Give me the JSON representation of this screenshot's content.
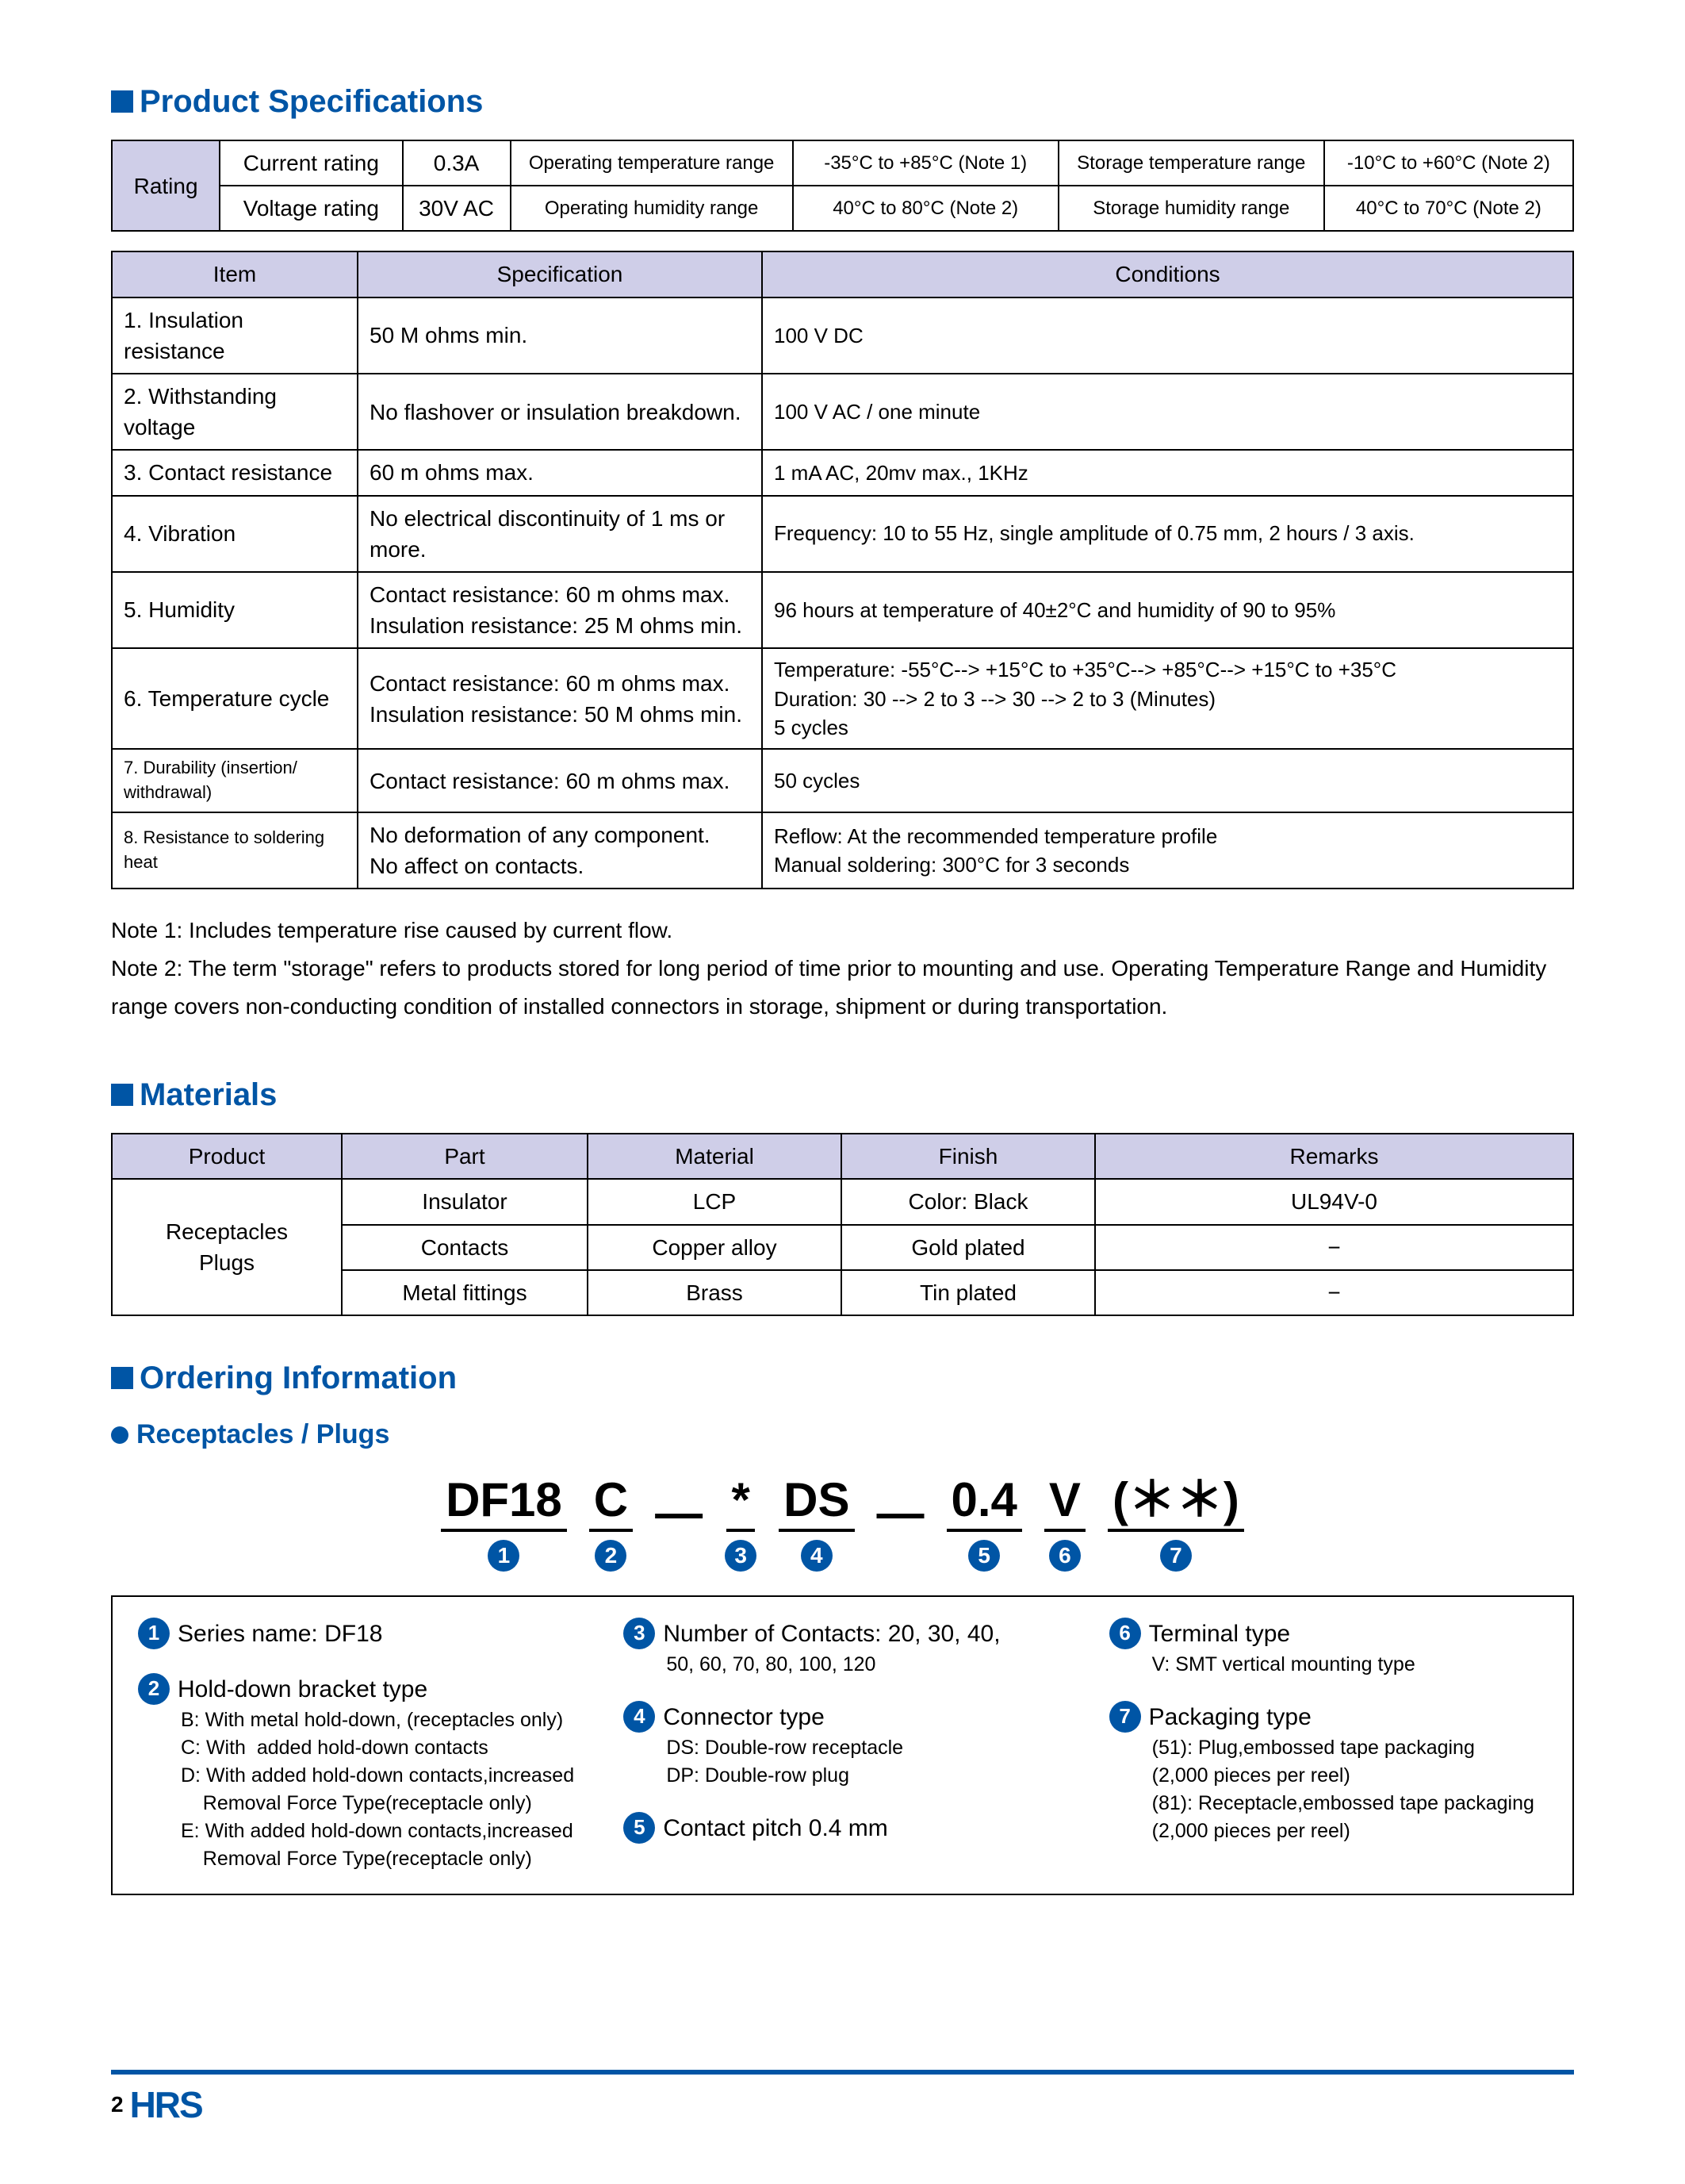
{
  "colors": {
    "brand": "#0055a5",
    "header_bg": "#cfcee8",
    "border": "#000000",
    "text": "#000000",
    "background": "#ffffff"
  },
  "sections": {
    "product_spec": "Product Specifications",
    "materials": "Materials",
    "ordering": "Ordering Information",
    "receptacles": "Receptacles / Plugs"
  },
  "rating_table": {
    "row_label": "Rating",
    "rows": [
      {
        "c1": "Current rating",
        "c2": "0.3A",
        "c3": "Operating temperature range",
        "c4": "-35°C to +85°C (Note 1)",
        "c5": "Storage temperature range",
        "c6": "-10°C to +60°C (Note 2)"
      },
      {
        "c1": "Voltage rating",
        "c2": "30V AC",
        "c3": "Operating humidity range",
        "c4": "40°C  to   80°C (Note 2)",
        "c5": "Storage humidity range",
        "c6": "40°C to   70°C (Note 2)"
      }
    ]
  },
  "spec_table": {
    "headers": {
      "item": "Item",
      "spec": "Specification",
      "cond": "Conditions"
    },
    "rows": [
      {
        "item": "1. Insulation resistance",
        "spec": "50 M ohms min.",
        "cond": "100 V DC"
      },
      {
        "item": "2. Withstanding voltage",
        "spec": "No flashover or insulation breakdown.",
        "cond": "100 V AC / one minute"
      },
      {
        "item": "3. Contact resistance",
        "spec": "60 m ohms max.",
        "cond": "1 mA AC, 20mv max., 1KHz"
      },
      {
        "item": "4. Vibration",
        "spec": "No electrical discontinuity of 1 ms or more.",
        "cond": "Frequency: 10 to 55 Hz, single amplitude of 0.75 mm, 2 hours / 3 axis."
      },
      {
        "item": "5. Humidity",
        "spec": "Contact resistance: 60 m ohms max.\nInsulation resistance: 25 M ohms min.",
        "cond": "96 hours at temperature of 40±2°C and humidity of 90 to 95%"
      },
      {
        "item": "6. Temperature cycle",
        "spec": "Contact resistance: 60 m ohms max.\nInsulation resistance: 50 M ohms min.",
        "cond": "Temperature: -55°C--> +15°C to +35°C--> +85°C--> +15°C  to +35°C\nDuration: 30 --> 2 to 3 --> 30 --> 2 to 3 (Minutes)\n5 cycles"
      },
      {
        "item": "7. Durability (insertion/ withdrawal)",
        "spec": "Contact resistance: 60 m ohms max.",
        "cond": "50 cycles",
        "item_small": true
      },
      {
        "item": "8. Resistance to soldering heat",
        "spec": "No deformation of any component.\nNo affect on contacts.",
        "cond": "Reflow: At the recommended temperature profile\nManual soldering: 300°C for 3 seconds",
        "item_small": true
      }
    ]
  },
  "notes": [
    "Note 1: Includes temperature rise caused by current flow.",
    "Note 2: The term \"storage\" refers to products stored for long period of time prior to mounting and use. Operating Temperature Range and Humidity range covers non-conducting condition of  installed connectors in storage, shipment or during transportation."
  ],
  "materials_table": {
    "headers": {
      "product": "Product",
      "part": "Part",
      "material": "Material",
      "finish": "Finish",
      "remarks": "Remarks"
    },
    "product_label": "Receptacles\nPlugs",
    "rows": [
      {
        "part": "Insulator",
        "material": "LCP",
        "finish": "Color: Black",
        "remarks": "UL94V-0"
      },
      {
        "part": "Contacts",
        "material": "Copper alloy",
        "finish": "Gold plated",
        "remarks": "−"
      },
      {
        "part": "Metal fittings",
        "material": "Brass",
        "finish": "Tin plated",
        "remarks": "−"
      }
    ]
  },
  "order_code": {
    "segments": [
      {
        "text": "DF18",
        "num": "1"
      },
      {
        "text": "C",
        "num": "2"
      },
      {
        "text": "*",
        "num": "3"
      },
      {
        "text": "DS",
        "num": "4"
      },
      {
        "text": "0.4",
        "num": "5"
      },
      {
        "text": "V",
        "num": "6"
      },
      {
        "text": "(＊＊)",
        "num": "7"
      }
    ],
    "dash_after": [
      1,
      3
    ]
  },
  "order_legend": {
    "col1": [
      {
        "num": "1",
        "head": "Series name: DF18",
        "subs": []
      },
      {
        "num": "2",
        "head": "Hold-down bracket type",
        "subs": [
          "B: With metal hold-down, (receptacles only)",
          "C: With  added hold-down contacts",
          "D: With added hold-down contacts,increased",
          "    Removal Force Type(receptacle only)",
          "E: With added hold-down contacts,increased",
          "    Removal Force Type(receptacle only)"
        ]
      }
    ],
    "col2": [
      {
        "num": "3",
        "head": "Number of Contacts: 20, 30, 40,",
        "subs": [
          "50, 60, 70, 80, 100, 120"
        ]
      },
      {
        "num": "4",
        "head": "Connector type",
        "subs": [
          "DS: Double-row receptacle",
          "DP: Double-row plug"
        ]
      },
      {
        "num": "5",
        "head": "Contact pitch  0.4 mm",
        "subs": []
      }
    ],
    "col3": [
      {
        "num": "6",
        "head": "Terminal type",
        "subs": [
          "V: SMT vertical mounting type"
        ]
      },
      {
        "num": "7",
        "head": "Packaging type",
        "subs": [
          "(51): Plug,embossed tape packaging",
          "(2,000 pieces per reel)",
          "(81): Receptacle,embossed tape packaging",
          "(2,000 pieces per reel)"
        ]
      }
    ]
  },
  "footer": {
    "page": "2",
    "logo": "HRS"
  }
}
